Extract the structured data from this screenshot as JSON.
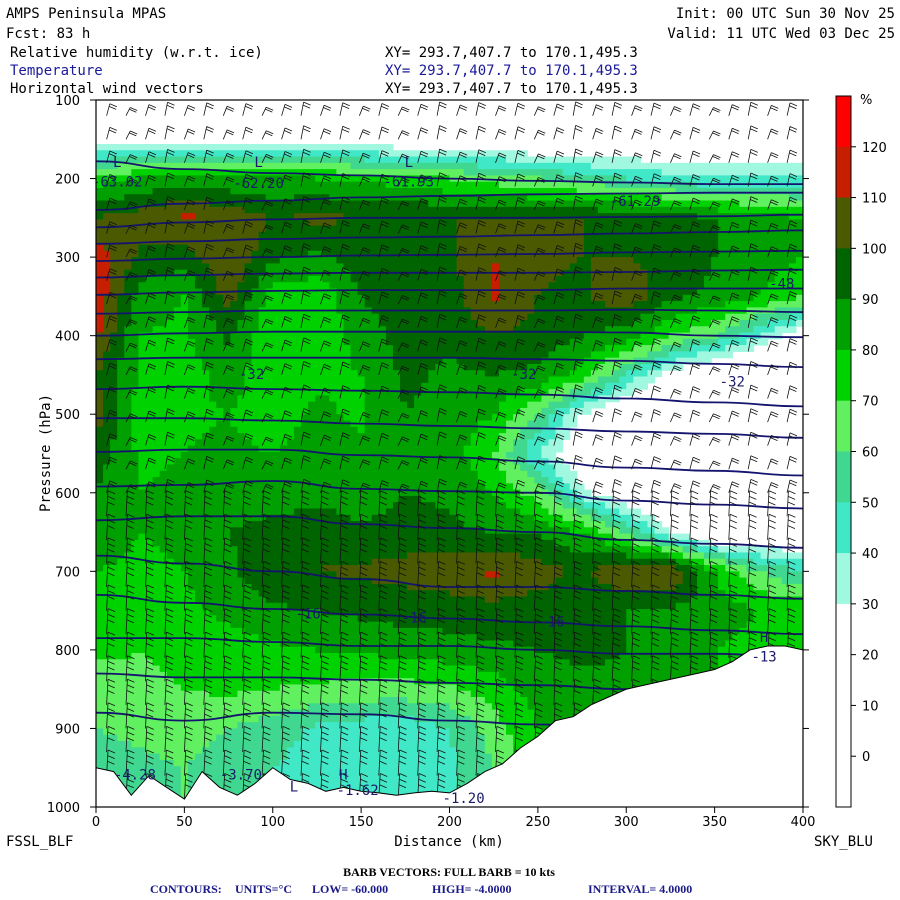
{
  "header": {
    "model": "AMPS Peninsula MPAS",
    "fcst": "Fcst:   83 h",
    "init": "Init: 00 UTC Sun 30 Nov 25",
    "valid": "Valid: 11 UTC Wed 03 Dec 25",
    "fields": [
      {
        "label": "Relative humidity (w.r.t. ice)",
        "xy": "XY= 293.7,407.7 to 170.1,495.3",
        "color": "#000000"
      },
      {
        "label": "Temperature",
        "xy": "XY= 293.7,407.7 to 170.1,495.3",
        "color": "#1a1a9a"
      },
      {
        "label": "Horizontal wind vectors",
        "xy": "XY= 293.7,407.7 to 170.1,495.3",
        "color": "#000000"
      }
    ]
  },
  "chart_data": {
    "type": "heatmap",
    "xlabel": "Distance (km)",
    "ylabel": "Pressure (hPa)",
    "xlim": [
      0,
      400
    ],
    "ylim": [
      1000,
      100
    ],
    "x_ticks": [
      0,
      50,
      100,
      150,
      200,
      250,
      300,
      350,
      400
    ],
    "y_ticks": [
      100,
      200,
      300,
      400,
      500,
      600,
      700,
      800,
      900,
      1000
    ],
    "left_endpoint": "FSSL_BLF",
    "right_endpoint": "SKY_BLU",
    "colorbar": {
      "unit": "%",
      "levels": [
        120,
        110,
        100,
        90,
        80,
        70,
        60,
        50,
        40,
        30,
        20,
        10,
        0
      ],
      "colors": [
        "#ff0000",
        "#c81e00",
        "#4b5a00",
        "#006400",
        "#00a000",
        "#00d200",
        "#60f060",
        "#40d890",
        "#40e8c8",
        "#a0f8e0",
        "#ffffff",
        "#ffffff",
        "#ffffff",
        "#ffffff"
      ]
    },
    "rh_field": {
      "x": [
        0,
        25,
        50,
        75,
        100,
        125,
        150,
        175,
        200,
        225,
        250,
        275,
        300,
        325,
        350,
        375,
        400
      ],
      "p": [
        100,
        150,
        200,
        250,
        300,
        350,
        400,
        450,
        500,
        550,
        600,
        650,
        700,
        750,
        800,
        850,
        900,
        950
      ],
      "values": [
        [
          5,
          5,
          5,
          5,
          5,
          5,
          5,
          5,
          5,
          5,
          5,
          5,
          5,
          5,
          5,
          5,
          5
        ],
        [
          20,
          25,
          22,
          20,
          18,
          22,
          20,
          18,
          15,
          15,
          12,
          10,
          10,
          10,
          12,
          15,
          15
        ],
        [
          75,
          80,
          85,
          82,
          80,
          80,
          78,
          75,
          70,
          65,
          60,
          55,
          50,
          45,
          40,
          40,
          40
        ],
        [
          100,
          105,
          112,
          108,
          100,
          102,
          100,
          100,
          100,
          100,
          100,
          100,
          98,
          95,
          90,
          85,
          80
        ],
        [
          115,
          98,
          95,
          110,
          92,
          88,
          96,
          100,
          98,
          110,
          102,
          100,
          100,
          98,
          90,
          85,
          80
        ],
        [
          118,
          85,
          80,
          105,
          75,
          72,
          90,
          96,
          95,
          112,
          100,
          98,
          108,
          92,
          88,
          80,
          70
        ],
        [
          112,
          80,
          78,
          92,
          70,
          70,
          85,
          94,
          92,
          100,
          96,
          90,
          85,
          70,
          60,
          40,
          20
        ],
        [
          100,
          78,
          75,
          85,
          72,
          78,
          80,
          92,
          88,
          90,
          88,
          75,
          50,
          25,
          10,
          5,
          5
        ],
        [
          105,
          75,
          78,
          80,
          75,
          82,
          78,
          90,
          86,
          80,
          60,
          30,
          10,
          5,
          5,
          5,
          5
        ],
        [
          95,
          78,
          80,
          82,
          80,
          84,
          82,
          88,
          85,
          70,
          40,
          15,
          5,
          5,
          5,
          5,
          5
        ],
        [
          90,
          80,
          82,
          85,
          82,
          86,
          84,
          90,
          88,
          80,
          65,
          35,
          15,
          5,
          5,
          5,
          5
        ],
        [
          85,
          80,
          82,
          90,
          95,
          98,
          92,
          94,
          92,
          90,
          88,
          80,
          60,
          30,
          10,
          10,
          10
        ],
        [
          80,
          78,
          80,
          88,
          98,
          100,
          102,
          104,
          106,
          112,
          105,
          98,
          110,
          112,
          80,
          60,
          50
        ],
        [
          78,
          75,
          78,
          82,
          88,
          90,
          92,
          94,
          95,
          96,
          95,
          92,
          90,
          88,
          85,
          80,
          78
        ],
        [
          72,
          70,
          72,
          76,
          78,
          80,
          82,
          84,
          86,
          88,
          90,
          92,
          90,
          85,
          80,
          75,
          75
        ],
        [
          65,
          68,
          70,
          72,
          70,
          68,
          66,
          66,
          68,
          75,
          85,
          88,
          88,
          85,
          80,
          75,
          75
        ],
        [
          60,
          62,
          65,
          60,
          55,
          48,
          45,
          44,
          50,
          65,
          80,
          85,
          85,
          80,
          75,
          75,
          75
        ],
        [
          55,
          58,
          60,
          55,
          50,
          45,
          42,
          42,
          48,
          60,
          75,
          80,
          80,
          75,
          75,
          75,
          75
        ]
      ]
    },
    "terrain_pressure": {
      "x": [
        0,
        10,
        20,
        30,
        40,
        50,
        60,
        70,
        80,
        90,
        100,
        110,
        120,
        130,
        140,
        150,
        160,
        170,
        180,
        190,
        200,
        210,
        220,
        230,
        240,
        250,
        260,
        270,
        280,
        290,
        300,
        310,
        320,
        330,
        340,
        350,
        360,
        370,
        380,
        390,
        400
      ],
      "p": [
        950,
        955,
        985,
        960,
        975,
        990,
        955,
        975,
        985,
        970,
        950,
        965,
        970,
        980,
        975,
        980,
        982,
        985,
        982,
        980,
        982,
        970,
        955,
        945,
        925,
        910,
        890,
        885,
        870,
        860,
        850,
        845,
        840,
        835,
        830,
        825,
        815,
        800,
        795,
        795,
        800
      ]
    },
    "temperature_contours": {
      "units": "°C",
      "low": "-60.000",
      "high": "-4.0000",
      "interval": "4.0000",
      "isotherms_p": [
        [
          178,
          188,
          193,
          196,
          200,
          203,
          205,
          207,
          207
        ],
        [
          240,
          232,
          228,
          224,
          222,
          220,
          219,
          218,
          218
        ],
        [
          262,
          256,
          252,
          250,
          250,
          250,
          249,
          248,
          246
        ],
        [
          283,
          280,
          277,
          275,
          274,
          272,
          270,
          268,
          266
        ],
        [
          305,
          302,
          300,
          298,
          297,
          296,
          294,
          293,
          292
        ],
        [
          326,
          323,
          321,
          320,
          320,
          320,
          319,
          317,
          316
        ],
        [
          348,
          345,
          343,
          342,
          342,
          342,
          340,
          340,
          340
        ],
        [
          372,
          370,
          368,
          368,
          368,
          368,
          367,
          368,
          370
        ],
        [
          400,
          397,
          395,
          395,
          395,
          395,
          396,
          400,
          402
        ],
        [
          430,
          428,
          428,
          428,
          428,
          430,
          432,
          436,
          440
        ],
        [
          468,
          465,
          468,
          470,
          472,
          475,
          480,
          485,
          490
        ],
        [
          505,
          505,
          508,
          512,
          515,
          518,
          522,
          525,
          530
        ],
        [
          548,
          545,
          545,
          552,
          555,
          560,
          568,
          572,
          578
        ],
        [
          592,
          590,
          585,
          595,
          598,
          600,
          610,
          615,
          620
        ],
        [
          635,
          630,
          630,
          640,
          645,
          650,
          660,
          665,
          670
        ],
        [
          680,
          690,
          700,
          710,
          720,
          720,
          725,
          730,
          735
        ],
        [
          730,
          740,
          748,
          755,
          760,
          765,
          770,
          775,
          780
        ],
        [
          785,
          785,
          790,
          795,
          795,
          800,
          805,
          805,
          810
        ],
        [
          830,
          835,
          835,
          838,
          842,
          845,
          850,
          858,
          865
        ],
        [
          880,
          890,
          880,
          882,
          890,
          895,
          900,
          905,
          910
        ]
      ],
      "isotherms_x": [
        0,
        50,
        100,
        150,
        200,
        250,
        300,
        350,
        400
      ],
      "labels": [
        {
          "text": "-63.02",
          "x": 12,
          "p": 210
        },
        {
          "text": "-62.20",
          "x": 92,
          "p": 212
        },
        {
          "text": "-61.93",
          "x": 177,
          "p": 210
        },
        {
          "text": "-61.29",
          "x": 305,
          "p": 235
        },
        {
          "text": "-48",
          "x": 388,
          "p": 340
        },
        {
          "text": "-32",
          "x": 88,
          "p": 455
        },
        {
          "text": "-32",
          "x": 242,
          "p": 455
        },
        {
          "text": "-32",
          "x": 360,
          "p": 465
        },
        {
          "text": "-16",
          "x": 120,
          "p": 760
        },
        {
          "text": "-16",
          "x": 180,
          "p": 765
        },
        {
          "text": "-16",
          "x": 258,
          "p": 770
        },
        {
          "text": "-13",
          "x": 378,
          "p": 815
        },
        {
          "text": "-4.28",
          "x": 22,
          "p": 965
        },
        {
          "text": "-3.70",
          "x": 82,
          "p": 965
        },
        {
          "text": "-1.62",
          "x": 148,
          "p": 985
        },
        {
          "text": "-1.20",
          "x": 208,
          "p": 995
        }
      ],
      "extrema": [
        {
          "text": "L",
          "x": 12,
          "p": 185
        },
        {
          "text": "L",
          "x": 92,
          "p": 185
        },
        {
          "text": "L",
          "x": 177,
          "p": 185
        },
        {
          "text": "H",
          "x": 140,
          "p": 965
        },
        {
          "text": "H",
          "x": 378,
          "p": 790
        },
        {
          "text": "L",
          "x": 112,
          "p": 980
        }
      ]
    },
    "footer": {
      "barb_note": "BARB VECTORS:  FULL BARB = 10 kts",
      "contours_label": "CONTOURS:",
      "units_text": "UNITS=°C",
      "low_text": "LOW= -60.000",
      "high_text": "HIGH= -4.0000",
      "interval_text": "INTERVAL=   4.0000"
    }
  }
}
